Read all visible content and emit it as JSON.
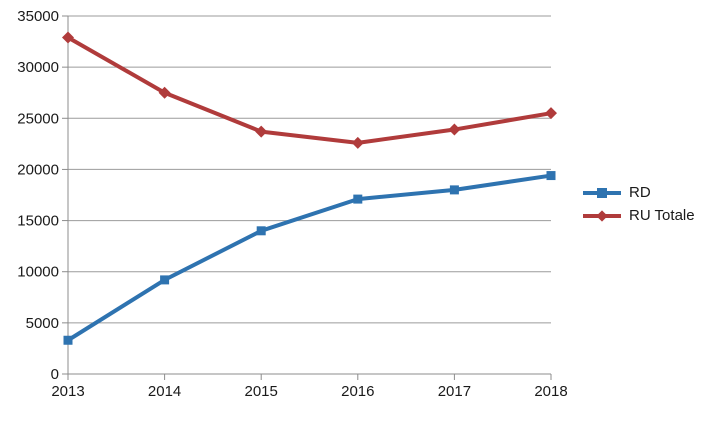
{
  "chart_data": {
    "type": "line",
    "x": [
      2013,
      2014,
      2015,
      2016,
      2017,
      2018
    ],
    "series": [
      {
        "name": "RD",
        "color": "#2E73B0",
        "marker": "square",
        "values": [
          3300,
          9200,
          14000,
          17100,
          18000,
          19400
        ]
      },
      {
        "name": "RU Totale",
        "color": "#B03B3B",
        "marker": "diamond",
        "values": [
          32900,
          27500,
          23700,
          22600,
          23900,
          25500
        ]
      }
    ],
    "title": "",
    "xlabel": "",
    "ylabel": "",
    "ylim": [
      0,
      35000
    ],
    "ytick_interval": 5000,
    "xticks": [
      "2013",
      "2014",
      "2015",
      "2016",
      "2017",
      "2018"
    ],
    "yticks": [
      "0",
      "5000",
      "10000",
      "15000",
      "20000",
      "25000",
      "30000",
      "35000"
    ],
    "grid": true,
    "legend_position": "right",
    "grid_color": "#9b9b9b",
    "axis_color": "#8c8c8c",
    "text_color": "#1a1a1a",
    "line_width": 4
  }
}
